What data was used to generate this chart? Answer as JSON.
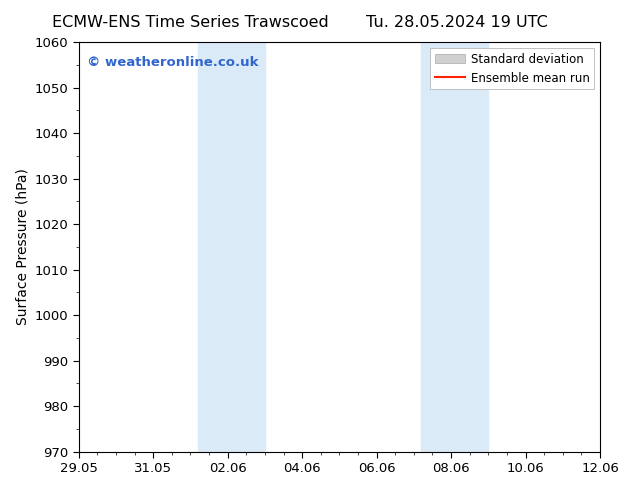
{
  "title_left": "ECMW-ENS Time Series Trawscoed",
  "title_right": "Tu. 28.05.2024 19 UTC",
  "ylabel": "Surface Pressure (hPa)",
  "ylim": [
    970,
    1060
  ],
  "yticks": [
    970,
    980,
    990,
    1000,
    1010,
    1020,
    1030,
    1040,
    1050,
    1060
  ],
  "xtick_labels": [
    "29.05",
    "31.05",
    "02.06",
    "04.06",
    "06.06",
    "08.06",
    "10.06",
    "12.06"
  ],
  "xtick_positions_days": [
    0,
    2,
    4,
    6,
    8,
    10,
    12,
    14
  ],
  "shaded_bands": [
    {
      "x_start_day": 3.2,
      "x_end_day": 5.0
    },
    {
      "x_start_day": 9.2,
      "x_end_day": 11.0
    }
  ],
  "shade_color": "#daeaf7",
  "watermark_text": "© weatheronline.co.uk",
  "watermark_color": "#3366cc",
  "legend_std_color": "#d0d0d0",
  "legend_std_edge": "#aaaaaa",
  "legend_mean_color": "#ff2200",
  "background_color": "#ffffff",
  "spine_color": "#000000",
  "tick_color": "#000000",
  "title_fontsize": 11.5,
  "axis_label_fontsize": 10,
  "tick_fontsize": 9.5,
  "watermark_fontsize": 9.5,
  "legend_fontsize": 8.5
}
